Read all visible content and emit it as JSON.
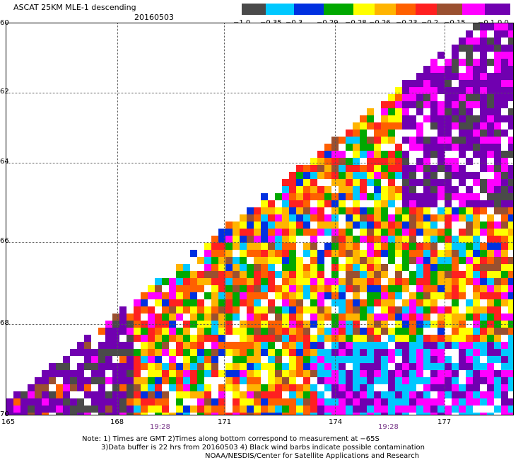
{
  "header": {
    "title": "ASCAT 25KM MLE-1 descending",
    "date": "20160503"
  },
  "colorbar": {
    "colors": [
      "#4a4a4a",
      "#00c8ff",
      "#0030e0",
      "#00a800",
      "#ffff00",
      "#ffb400",
      "#ff6000",
      "#ff2020",
      "#9a5030",
      "#ff00ff",
      "#7000b0"
    ],
    "labels": [
      "−1.0",
      "−0.35",
      "−0.3",
      "−0.29",
      "−0.28",
      "−0.26",
      "−0.23",
      "−0.2",
      "−0.15",
      "−0.1",
      "0.0"
    ]
  },
  "axes": {
    "latitudes": [
      "60",
      "62",
      "64",
      "66",
      "68",
      "70"
    ],
    "longitudes": [
      "165",
      "168",
      "171",
      "174",
      "177"
    ],
    "times": [
      "19:28",
      "19:28"
    ]
  },
  "notes": {
    "line1": "Note: 1) Times are GMT 2)Times along bottom correspond to measurement at −65S",
    "line2": "3)Data buffer is 22 hrs from 20160503 4) Black wind barbs indicate possible contamination",
    "line3": "NOAA/NESDIS/Center for Satellite Applications and Research"
  }
}
